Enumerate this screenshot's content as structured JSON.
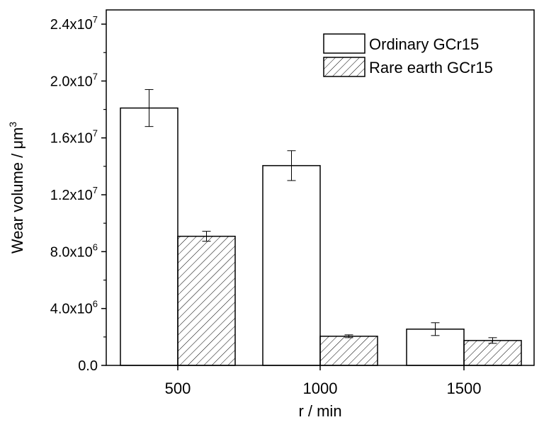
{
  "chart_data": {
    "type": "bar",
    "title": "",
    "xlabel": "r / min",
    "ylabel_base": "Wear volume / ",
    "ylabel_unit": "μm",
    "ylabel_exp": "3",
    "categories": [
      "500",
      "1000",
      "1500"
    ],
    "ylim": [
      0,
      25000000
    ],
    "yticks": [
      {
        "value": 0,
        "mant": "0.0",
        "exp": ""
      },
      {
        "value": 4000000,
        "mant": "4.0x10",
        "exp": "6"
      },
      {
        "value": 8000000,
        "mant": "8.0x10",
        "exp": "6"
      },
      {
        "value": 12000000,
        "mant": "1.2x10",
        "exp": "7"
      },
      {
        "value": 16000000,
        "mant": "1.6x10",
        "exp": "7"
      },
      {
        "value": 20000000,
        "mant": "2.0x10",
        "exp": "7"
      },
      {
        "value": 24000000,
        "mant": "2.4x10",
        "exp": "7"
      }
    ],
    "series": [
      {
        "name": "Ordinary GCr15",
        "pattern": "none",
        "values": [
          18100000,
          14050000,
          2550000
        ],
        "errors": [
          1300000,
          1050000,
          450000
        ]
      },
      {
        "name": "Rare earth GCr15",
        "pattern": "hatch",
        "values": [
          9080000,
          2050000,
          1750000
        ],
        "errors": [
          350000,
          100000,
          200000
        ]
      }
    ],
    "legend_position": "top-right",
    "grid": false
  }
}
